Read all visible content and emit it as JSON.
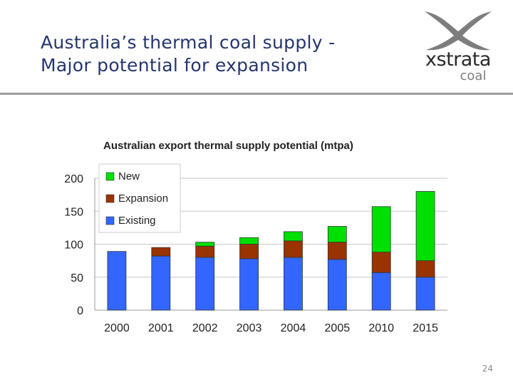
{
  "slide": {
    "title_line1": "Australia’s thermal coal supply -",
    "title_line2": "Major potential for expansion",
    "page_number": "24"
  },
  "logo": {
    "word": "xstrata",
    "sub": "coal",
    "icon": "xstrata-x-logo"
  },
  "colors": {
    "title": "#25356e",
    "new": "#00e000",
    "expansion": "#993300",
    "existing": "#3366ff",
    "divider": "#9c9c9c"
  },
  "chart_data": {
    "type": "bar",
    "stacked": true,
    "title": "Australian export thermal supply potential (mtpa)",
    "xlabel": "",
    "ylabel": "",
    "categories": [
      "2000",
      "2001",
      "2002",
      "2003",
      "2004",
      "2005",
      "2010",
      "2015"
    ],
    "series": [
      {
        "name": "Existing",
        "color": "#3366ff",
        "values": [
          89,
          82,
          80,
          78,
          80,
          77,
          57,
          50
        ]
      },
      {
        "name": "Expansion",
        "color": "#993300",
        "values": [
          0,
          13,
          17,
          22,
          25,
          26,
          31,
          25
        ]
      },
      {
        "name": "New",
        "color": "#00e000",
        "values": [
          0,
          0,
          6,
          10,
          14,
          24,
          69,
          105
        ]
      }
    ],
    "legend_order": [
      "New",
      "Expansion",
      "Existing"
    ],
    "ylim": [
      0,
      200
    ],
    "yticks": [
      0,
      50,
      100,
      150,
      200
    ],
    "grid": true,
    "legend_position": "top-left"
  }
}
